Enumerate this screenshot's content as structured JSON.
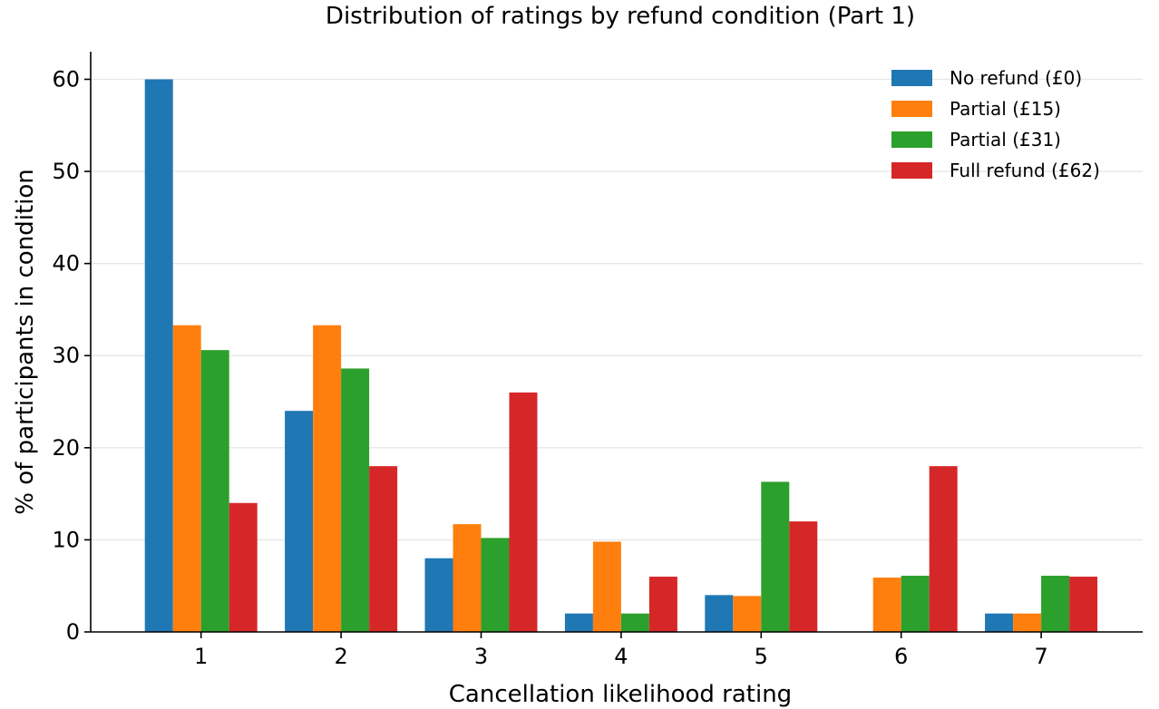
{
  "chart_data": {
    "type": "bar",
    "title": "Distribution of ratings by refund condition (Part 1)",
    "xlabel": "Cancellation likelihood rating",
    "ylabel": "% of participants in condition",
    "categories": [
      "1",
      "2",
      "3",
      "4",
      "5",
      "6",
      "7"
    ],
    "ylim": [
      0,
      63
    ],
    "yticks": [
      0,
      10,
      20,
      30,
      40,
      50,
      60
    ],
    "grid": "horizontal",
    "legend_position": "top-right",
    "series": [
      {
        "name": "No refund (£0)",
        "color": "#1f77b4",
        "values": [
          60.0,
          24.0,
          8.0,
          2.0,
          4.0,
          0.0,
          2.0
        ]
      },
      {
        "name": "Partial (£15)",
        "color": "#ff7f0e",
        "values": [
          33.3,
          33.3,
          11.7,
          9.8,
          3.9,
          5.9,
          2.0
        ]
      },
      {
        "name": "Partial (£31)",
        "color": "#2ca02c",
        "values": [
          30.6,
          28.6,
          10.2,
          2.0,
          16.3,
          6.1,
          6.1
        ]
      },
      {
        "name": "Full refund (£62)",
        "color": "#d62728",
        "values": [
          14.0,
          18.0,
          26.0,
          6.0,
          12.0,
          18.0,
          6.0
        ]
      }
    ]
  }
}
